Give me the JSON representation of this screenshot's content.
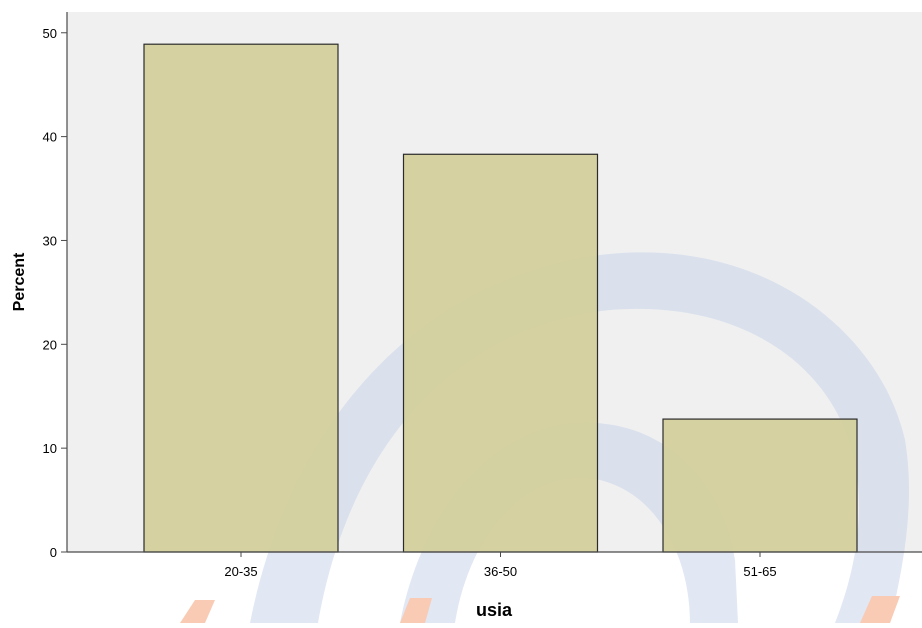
{
  "chart_data": {
    "type": "bar",
    "categories": [
      "20-35",
      "36-50",
      "51-65"
    ],
    "values": [
      48.9,
      38.3,
      12.8
    ],
    "title": "",
    "xlabel": "usia",
    "ylabel": "Percent",
    "ylim": [
      0,
      52
    ],
    "yticks": [
      0,
      10,
      20,
      30,
      40,
      50
    ],
    "grid": false,
    "legend": "none"
  },
  "colors": {
    "page_background": "#ffffff",
    "plot_background": "#f0f0f0",
    "bar_fill": "#d3ce9a",
    "bar_stroke": "#2b2b2b",
    "axis": "#4a4a4a",
    "watermark_blue": "#c9d5ea",
    "watermark_orange": "#f5a178"
  }
}
